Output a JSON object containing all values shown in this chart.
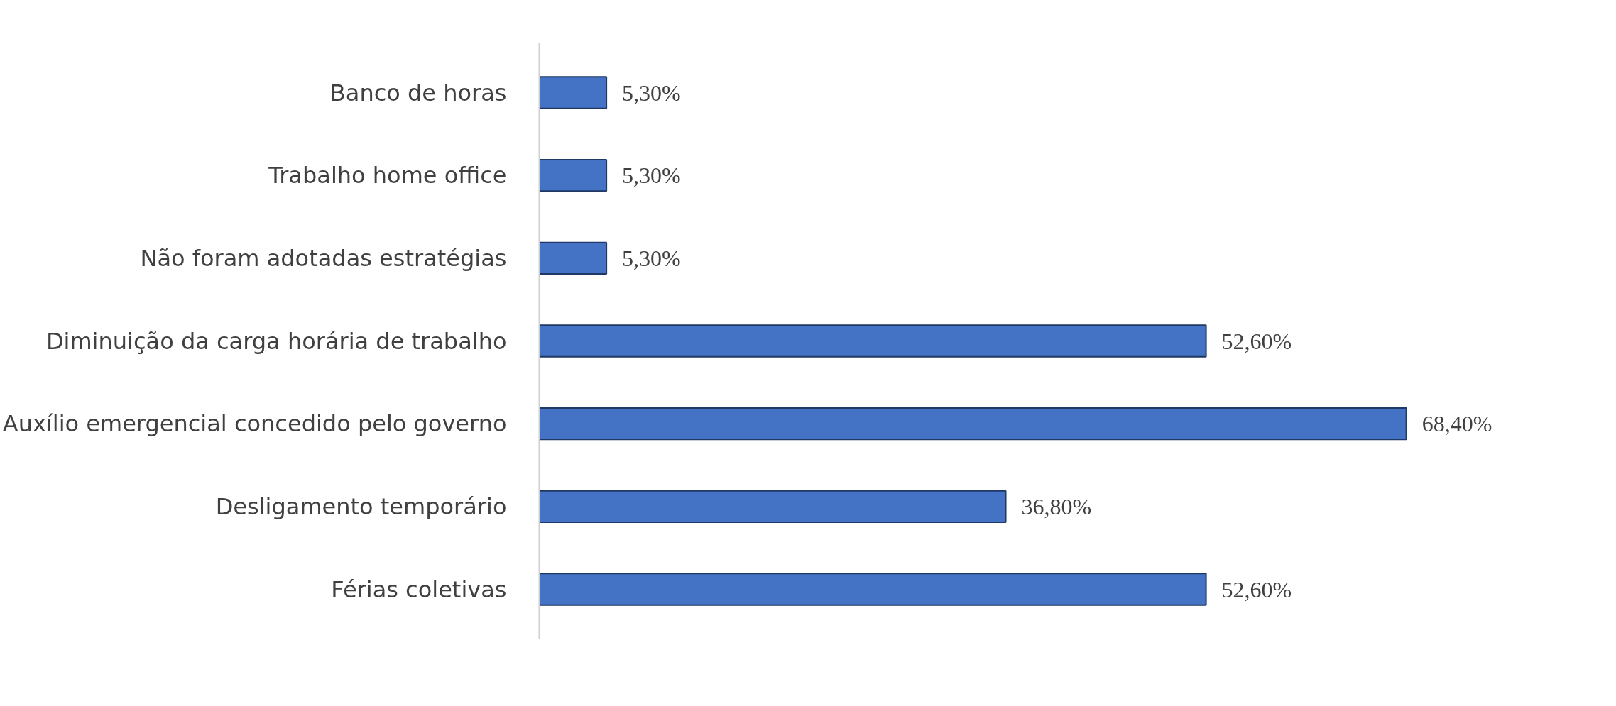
{
  "chart_data": {
    "type": "bar",
    "orientation": "horizontal",
    "categories": [
      "Banco de horas",
      "Trabalho home office",
      "Não foram adotadas estratégias",
      "Diminuição da carga horária de trabalho",
      "Auxílio emergencial concedido pelo governo",
      "Desligamento temporário",
      "Férias coletivas"
    ],
    "values": [
      5.3,
      5.3,
      5.3,
      52.6,
      68.4,
      36.8,
      52.6
    ],
    "value_labels": [
      "5,30%",
      "5,30%",
      "5,30%",
      "52,60%",
      "68,40%",
      "36,80%",
      "52,60%"
    ],
    "color": "#4472c4"
  }
}
